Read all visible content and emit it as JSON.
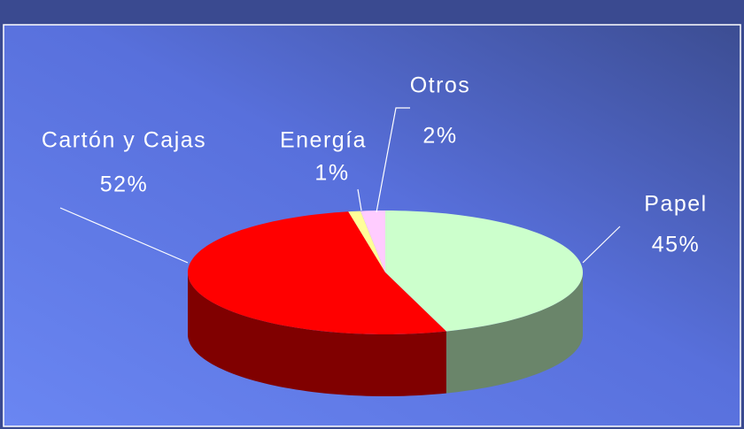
{
  "chart_data": {
    "type": "pie3d",
    "categories": [
      "Papel",
      "Cartón y Cajas",
      "Energía",
      "Otros"
    ],
    "values": [
      45,
      52,
      1,
      2
    ],
    "value_labels": [
      "45%",
      "52%",
      "1%",
      "2%"
    ],
    "colors": [
      "#ccffcc",
      "#ff0000",
      "#ffff99",
      "#ffccff"
    ]
  }
}
